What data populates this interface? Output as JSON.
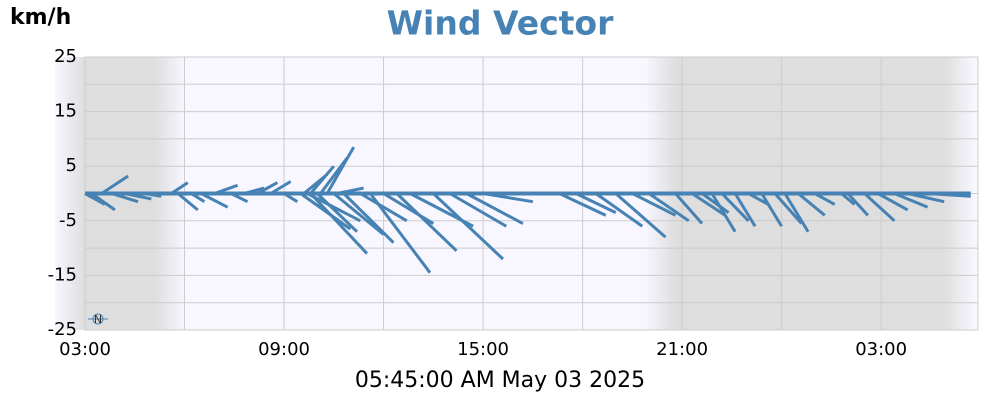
{
  "chart_data": {
    "type": "vector",
    "title": "Wind Vector",
    "ylabel": "km/h",
    "subtitle": "05:45:00 AM May 03 2025",
    "compass": "N",
    "color": "#4682b4",
    "grid": true,
    "shading": [
      [
        3,
        5.1
      ],
      [
        20.8,
        28.9
      ]
    ],
    "xlim": [
      3,
      29.92
    ],
    "xticks": [
      {
        "value": 3,
        "label": "03:00"
      },
      {
        "value": 9,
        "label": "09:00"
      },
      {
        "value": 15,
        "label": "15:00"
      },
      {
        "value": 21,
        "label": "21:00"
      },
      {
        "value": 27,
        "label": "03:00"
      }
    ],
    "minor_xticks": [
      6,
      12,
      18,
      24
    ],
    "ylim": [
      -25,
      25
    ],
    "yticks": [
      25,
      15,
      5,
      -5,
      -15,
      -25
    ],
    "minor_yticks": [
      20,
      10,
      0,
      -10,
      -20
    ],
    "x": [
      3.0,
      3.2,
      3.5,
      3.8,
      4.2,
      4.8,
      5.6,
      5.8,
      6.2,
      6.5,
      6.9,
      7.4,
      7.8,
      8.2,
      8.6,
      9.0,
      9.6,
      9.8,
      10.1,
      10.3,
      10.6,
      9.7,
      9.5,
      10.0,
      9.8,
      10.5,
      10.8,
      11.3,
      11.6,
      12.0,
      12.4,
      12.8,
      13.5,
      14.0,
      14.5,
      15.0,
      17.3,
      17.8,
      18.4,
      19.0,
      19.5,
      20.0,
      20.8,
      21.3,
      21.6,
      21.9,
      22.2,
      22.6,
      23.0,
      23.4,
      23.8,
      24.1,
      24.5,
      25.0,
      25.8,
      26.0,
      26.5,
      26.9,
      27.4,
      27.8,
      28.4
    ],
    "x_end": [
      3.6,
      3.9,
      4.3,
      4.6,
      5.0,
      5.3,
      6.1,
      6.4,
      6.6,
      7.3,
      7.6,
      7.9,
      8.4,
      8.8,
      9.2,
      9.4,
      10.3,
      10.5,
      10.9,
      11.1,
      11.4,
      11.3,
      11.0,
      11.2,
      11.5,
      12.0,
      12.3,
      12.7,
      13.4,
      13.5,
      14.2,
      14.7,
      15.6,
      15.7,
      16.2,
      16.5,
      18.7,
      19.0,
      19.8,
      20.5,
      20.8,
      21.2,
      21.6,
      22.3,
      22.4,
      22.6,
      23.0,
      23.2,
      23.6,
      24.0,
      24.6,
      24.8,
      25.3,
      25.6,
      26.2,
      26.6,
      27.4,
      27.8,
      28.4,
      28.9,
      29.7
    ],
    "values": [
      -2,
      -3,
      3.2,
      -1.5,
      -1,
      -0.5,
      2,
      -3,
      -1.5,
      -2.5,
      1.5,
      -1.5,
      1,
      2,
      2.2,
      -1.5,
      3.5,
      5,
      6.5,
      8.5,
      1,
      -5,
      -6.5,
      -7,
      -11,
      -7.5,
      -9,
      -5,
      -14.5,
      -5.5,
      -10.5,
      -6,
      -12,
      -6,
      -5.5,
      -1.5,
      -4,
      -3.5,
      -6,
      -8,
      -4,
      -5,
      -5.5,
      -4,
      -3.5,
      -7,
      -5,
      -6,
      -2,
      -6,
      -5.5,
      -7,
      -4,
      -2,
      -2,
      -4,
      -5,
      -3,
      -2.5,
      -1.5,
      -0.5
    ]
  }
}
